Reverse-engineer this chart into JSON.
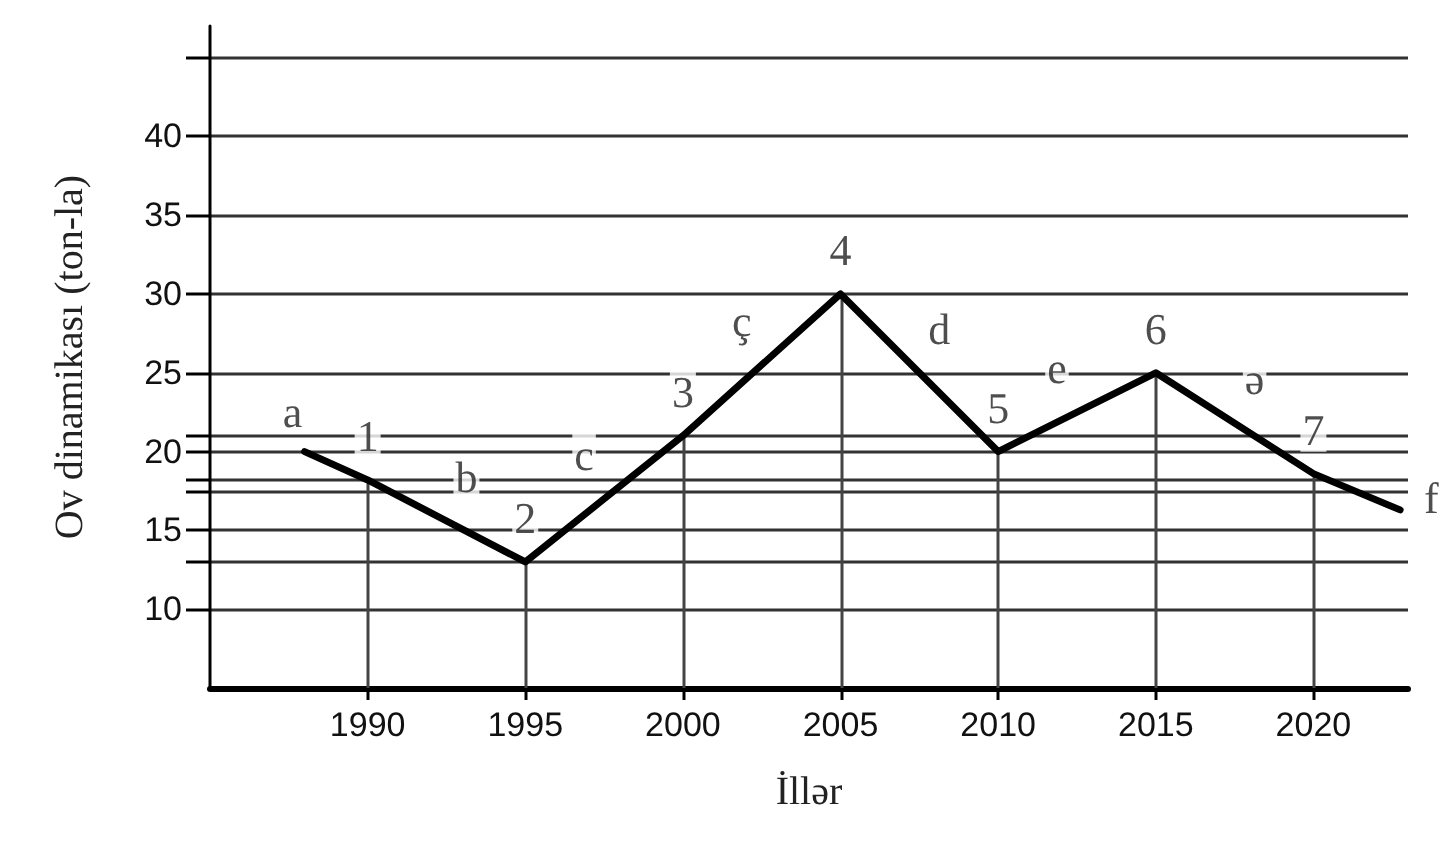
{
  "chart_data": {
    "type": "line",
    "xlabel": "İllər",
    "ylabel": "Ov dinamikası (ton-la)",
    "x": [
      1988,
      1990,
      1995,
      2000,
      2005,
      2010,
      2015,
      2020,
      2022.75
    ],
    "series": [
      {
        "color": "#000000",
        "values": [
          20,
          18.2,
          13,
          21,
          30,
          20,
          25,
          18.6,
          16.3
        ]
      }
    ],
    "xlim": [
      1985,
      2023
    ],
    "xticks": [
      1990,
      1995,
      2000,
      2005,
      2010,
      2015,
      2020
    ],
    "ylim": [
      5,
      47
    ],
    "yticks": [
      10,
      {
        "value": 13,
        "label": null
      },
      15,
      {
        "value": 17.5,
        "label": null
      },
      {
        "value": 18.2,
        "label": null
      },
      20,
      {
        "value": 21,
        "label": null
      },
      25,
      30,
      35,
      40,
      {
        "value": 45,
        "label": null
      }
    ],
    "grid": "y",
    "marker": "none",
    "line_style": "solid",
    "annotations": [
      {
        "text": "a",
        "x": 1988,
        "y": 20
      },
      {
        "text": "1",
        "x": 1990,
        "y": 18.2
      },
      {
        "text": "b",
        "x": 1992.5,
        "y": 15.6
      },
      {
        "text": "2",
        "x": 1995,
        "y": 13
      },
      {
        "text": "c",
        "x": 1997.5,
        "y": 17
      },
      {
        "text": "3",
        "x": 2000,
        "y": 21
      },
      {
        "text": "ç",
        "x": 2002.5,
        "y": 25.5
      },
      {
        "text": "4",
        "x": 2005,
        "y": 30
      },
      {
        "text": "d",
        "x": 2007.5,
        "y": 25
      },
      {
        "text": "5",
        "x": 2010,
        "y": 20
      },
      {
        "text": "e",
        "x": 2012.5,
        "y": 22.5
      },
      {
        "text": "6",
        "x": 2015,
        "y": 25
      },
      {
        "text": "ə",
        "x": 2017.5,
        "y": 21.8
      },
      {
        "text": "7",
        "x": 2020,
        "y": 18.6
      },
      {
        "text": "f",
        "x": 2022.75,
        "y": 16.3
      }
    ]
  }
}
